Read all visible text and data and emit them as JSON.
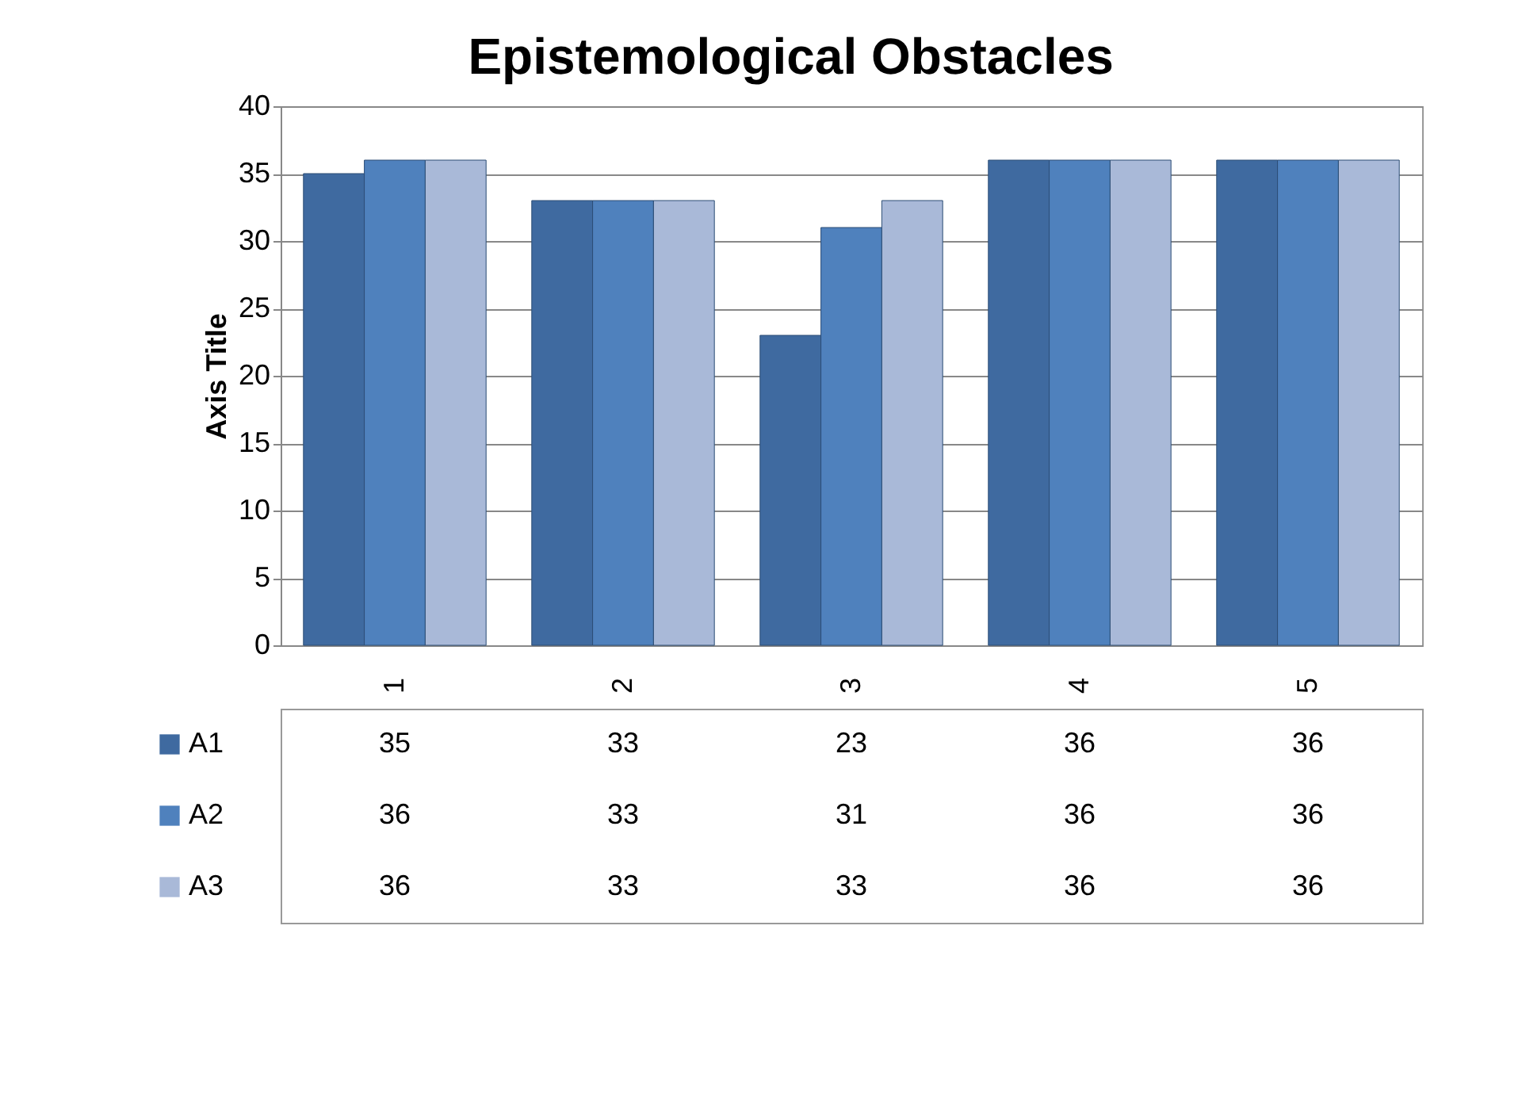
{
  "chart_data": {
    "type": "bar",
    "title": "Epistemological Obstacles",
    "ylabel": "Axis Title",
    "categories": [
      "1",
      "2",
      "3",
      "4",
      "5"
    ],
    "series": [
      {
        "name": "A1",
        "color": "#3f6aa0",
        "values": [
          35,
          33,
          23,
          36,
          36
        ]
      },
      {
        "name": "A2",
        "color": "#4f81bd",
        "values": [
          36,
          33,
          31,
          36,
          36
        ]
      },
      {
        "name": "A3",
        "color": "#a9b9d8",
        "values": [
          36,
          33,
          33,
          36,
          36
        ]
      }
    ],
    "ylim": [
      0,
      40
    ],
    "yticks": [
      0,
      5,
      10,
      15,
      20,
      25,
      30,
      35,
      40
    ],
    "grid": "y",
    "data_labels": true,
    "legend": "bottom left"
  }
}
